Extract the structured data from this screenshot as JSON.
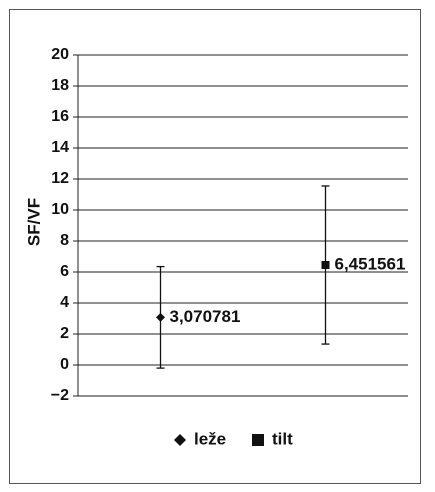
{
  "chart_data": {
    "type": "scatter",
    "ylabel": "SF/VF",
    "ylim": [
      -2,
      20
    ],
    "yticks": [
      20,
      18,
      16,
      14,
      12,
      10,
      8,
      6,
      4,
      2,
      0,
      -2
    ],
    "y_tick_labels": [
      "20",
      "18",
      "16",
      "14",
      "12",
      "10",
      "8",
      "6",
      "4",
      "2",
      "0",
      "−2"
    ],
    "grid": true,
    "legend_position": "bottom",
    "series": [
      {
        "name": "leže",
        "marker": "diamond",
        "x": 1,
        "y": 3.070781,
        "label": "3,070781",
        "error_low": -0.2,
        "error_high": 6.35
      },
      {
        "name": "tilt",
        "marker": "square",
        "x": 2,
        "y": 6.451561,
        "label": "6,451561",
        "error_low": 1.35,
        "error_high": 11.55
      }
    ]
  }
}
